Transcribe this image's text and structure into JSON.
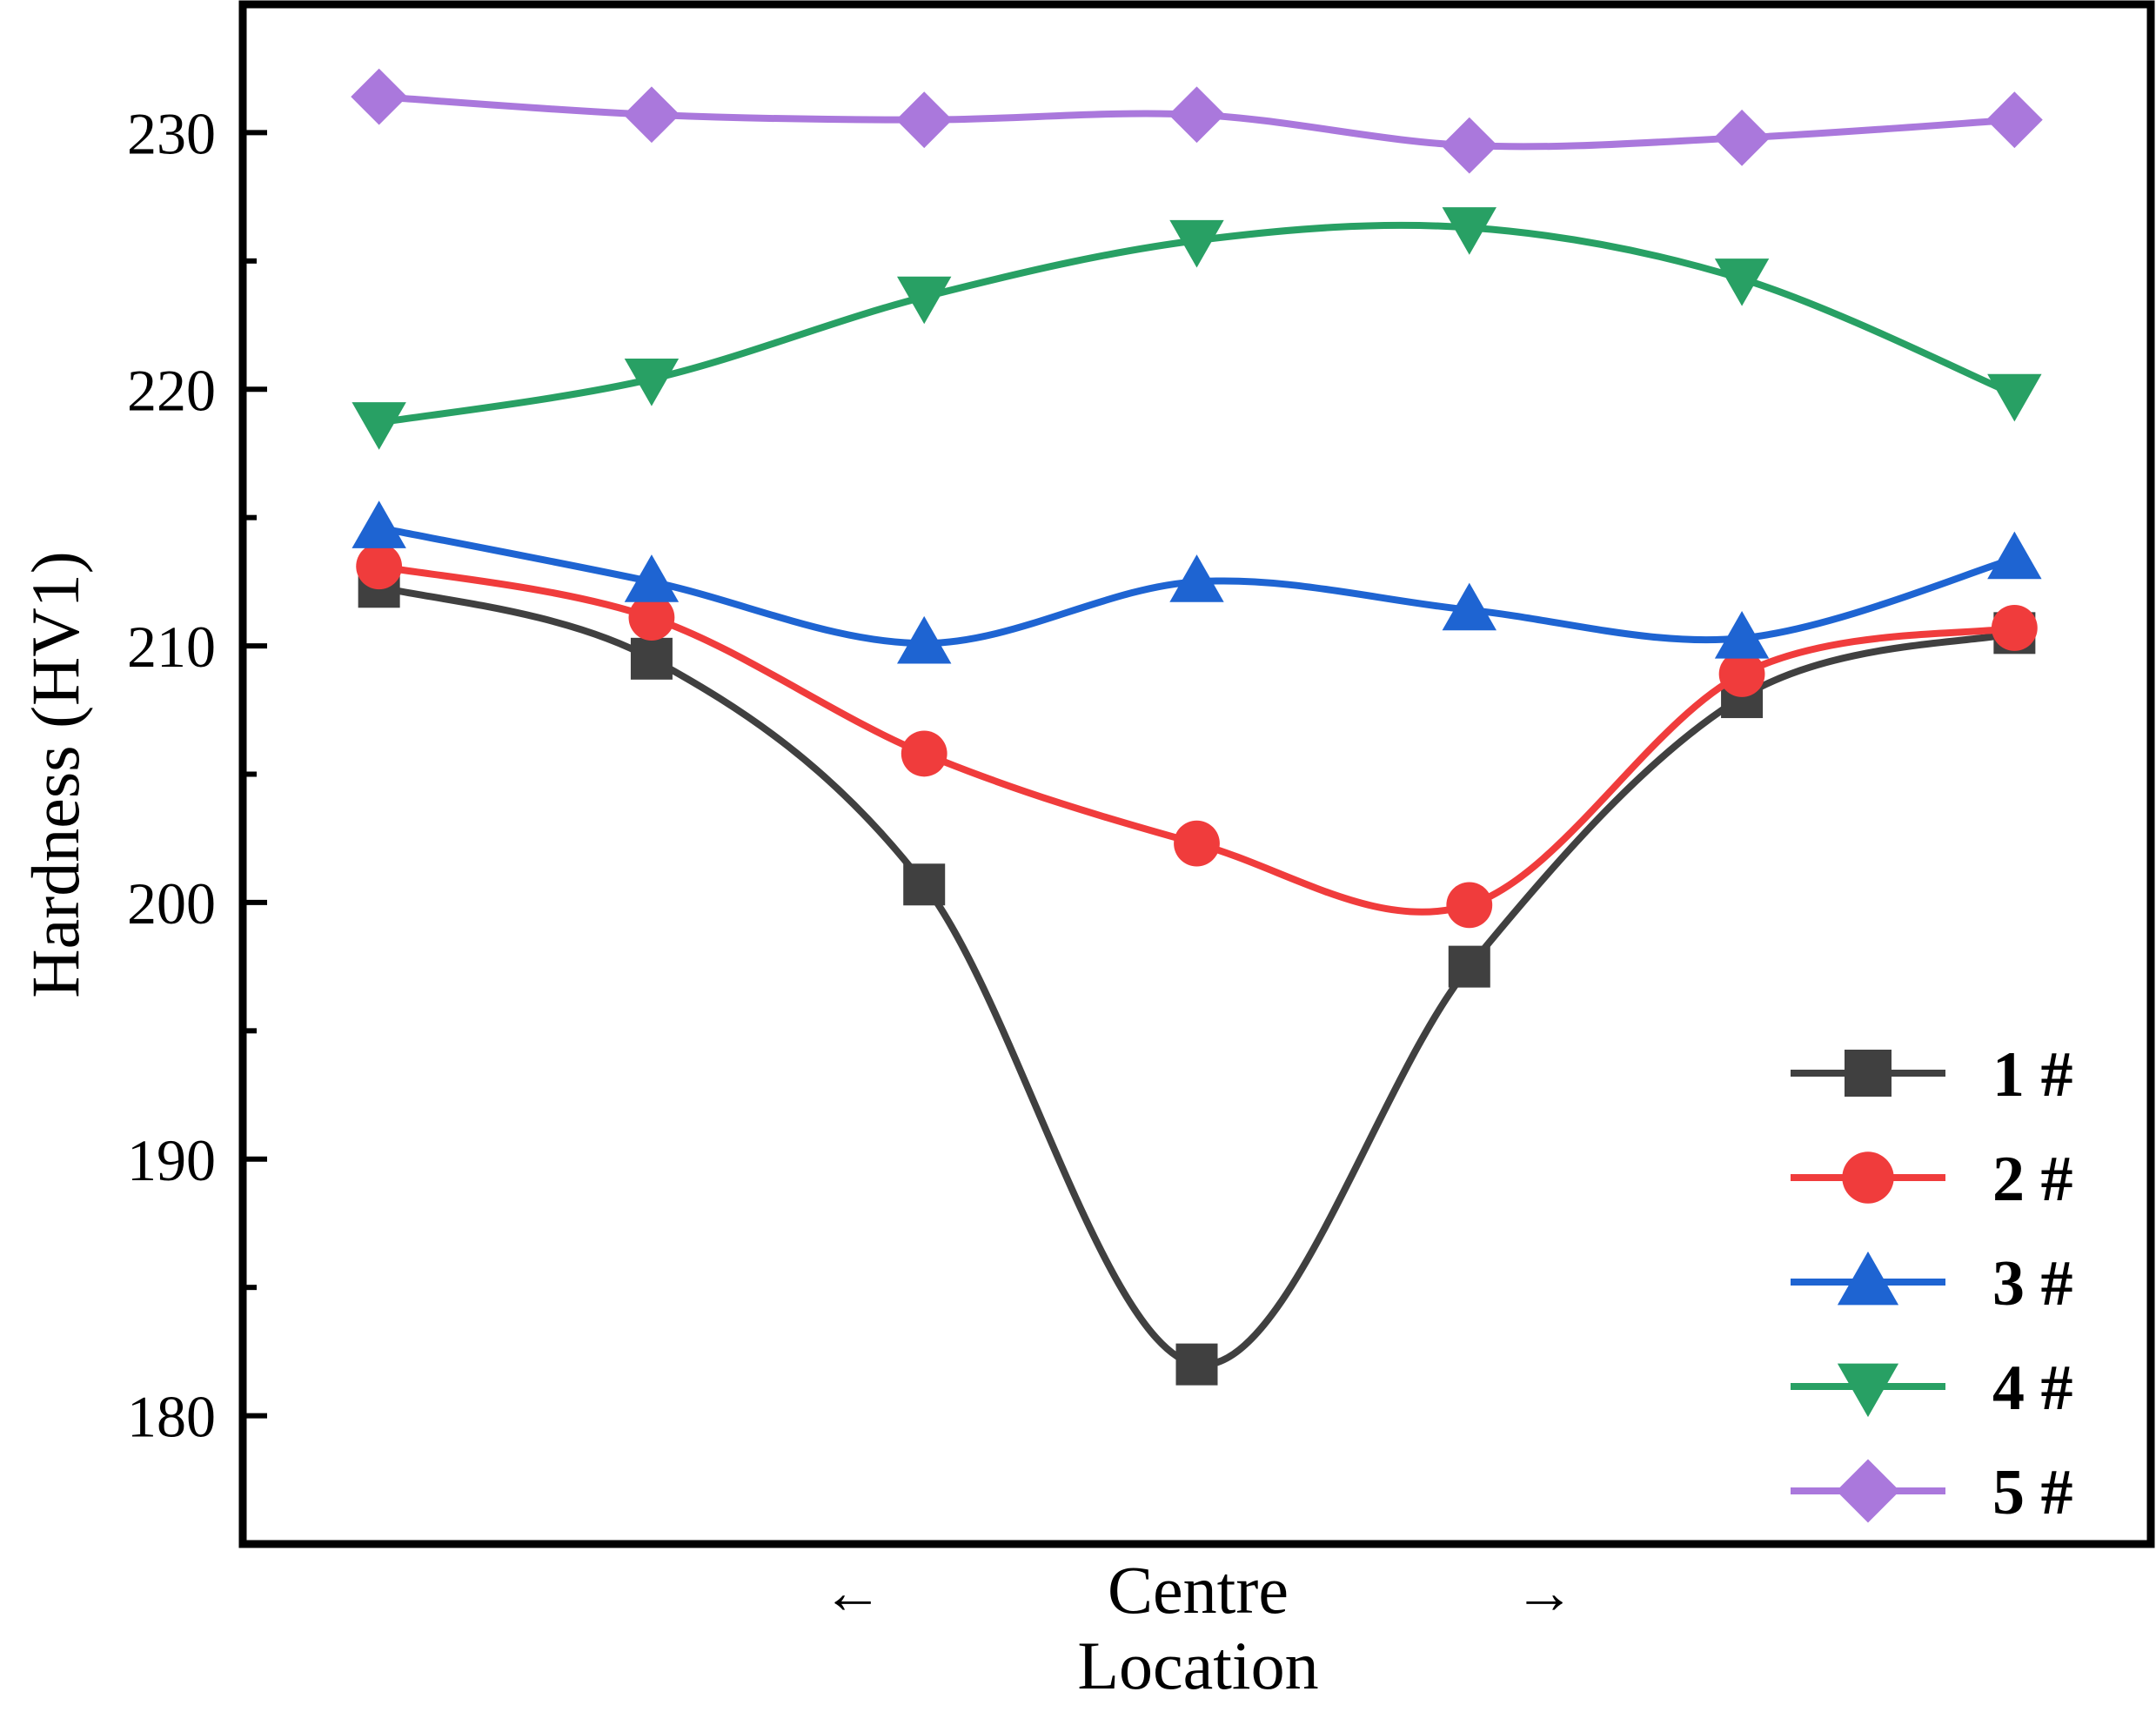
{
  "chart_data": {
    "type": "line",
    "title": "",
    "ylabel": "Hardness (HV1)",
    "xlabel": "Location",
    "x_center_label": "Centre",
    "x_arrow_left": "←",
    "x_arrow_right": "→",
    "ylim": [
      175,
      235
    ],
    "yticks": [
      180,
      190,
      200,
      210,
      220,
      230
    ],
    "x": [
      1,
      2,
      3,
      4,
      5,
      6,
      7
    ],
    "xlim": [
      0.5,
      7.5
    ],
    "grid": false,
    "legend_position": "bottom-right",
    "series": [
      {
        "name": "1 #",
        "color": "#404040",
        "marker": "square",
        "values": [
          212.3,
          209.5,
          200.7,
          182.0,
          197.5,
          208.0,
          210.5
        ]
      },
      {
        "name": "2 #",
        "color": "#f03c3c",
        "marker": "circle",
        "values": [
          213.1,
          211.1,
          205.8,
          202.3,
          199.9,
          208.9,
          210.7
        ]
      },
      {
        "name": "3 #",
        "color": "#1e64d2",
        "marker": "triangle-up",
        "values": [
          214.6,
          212.5,
          210.1,
          212.5,
          211.4,
          210.3,
          213.4
        ]
      },
      {
        "name": "4 #",
        "color": "#28a064",
        "marker": "triangle-down",
        "values": [
          218.7,
          220.4,
          223.6,
          225.8,
          226.3,
          224.3,
          219.8
        ]
      },
      {
        "name": "5 #",
        "color": "#aa78dc",
        "marker": "diamond",
        "values": [
          231.4,
          230.7,
          230.5,
          230.7,
          229.5,
          229.8,
          230.5
        ]
      }
    ]
  }
}
